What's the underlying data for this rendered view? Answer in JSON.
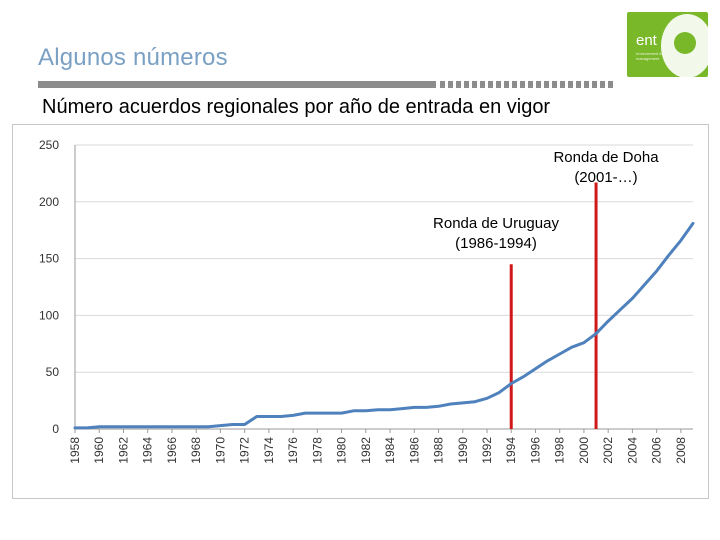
{
  "slide": {
    "title": "Algunos números",
    "subtitle": "Número acuerdos regionales por año de entrada en vigor"
  },
  "logo": {
    "text": "ent",
    "subtext": "environment & management"
  },
  "colors": {
    "title": "#7aa0c4",
    "series": "#4f81bd",
    "marker": "#d01818",
    "logo": "#79b829"
  },
  "chart_data": {
    "type": "line",
    "title": "",
    "xlabel": "",
    "ylabel": "",
    "xlim": [
      1958,
      2009
    ],
    "ylim": [
      0,
      250
    ],
    "y_ticks": [
      0,
      50,
      100,
      150,
      200,
      250
    ],
    "x_ticks": [
      1958,
      1960,
      1962,
      1964,
      1966,
      1968,
      1970,
      1972,
      1974,
      1976,
      1978,
      1980,
      1982,
      1984,
      1986,
      1988,
      1990,
      1992,
      1994,
      1996,
      1998,
      2000,
      2002,
      2004,
      2006,
      2008
    ],
    "grid": "horizontal",
    "legend": "none",
    "series": [
      {
        "name": "",
        "x": [
          1958,
          1959,
          1960,
          1961,
          1962,
          1963,
          1964,
          1965,
          1966,
          1967,
          1968,
          1969,
          1970,
          1971,
          1972,
          1973,
          1974,
          1975,
          1976,
          1977,
          1978,
          1979,
          1980,
          1981,
          1982,
          1983,
          1984,
          1985,
          1986,
          1987,
          1988,
          1989,
          1990,
          1991,
          1992,
          1993,
          1994,
          1995,
          1996,
          1997,
          1998,
          1999,
          2000,
          2001,
          2002,
          2003,
          2004,
          2005,
          2006,
          2007,
          2008,
          2009
        ],
        "values": [
          1,
          1,
          2,
          2,
          2,
          2,
          2,
          2,
          2,
          2,
          2,
          2,
          3,
          4,
          4,
          11,
          11,
          11,
          12,
          14,
          14,
          14,
          14,
          16,
          16,
          17,
          17,
          18,
          19,
          19,
          20,
          22,
          23,
          24,
          27,
          32,
          40,
          46,
          53,
          60,
          66,
          72,
          76,
          84,
          95,
          105,
          115,
          127,
          139,
          153,
          166,
          181
        ]
      }
    ],
    "annotations": [
      {
        "label_lines": [
          "Ronda de Doha",
          "(2001-…)"
        ],
        "x": 2001,
        "bar_top": 217
      },
      {
        "label_lines": [
          "Ronda de Uruguay",
          "(1986-1994)"
        ],
        "x": 1994,
        "bar_top": 145
      }
    ]
  }
}
